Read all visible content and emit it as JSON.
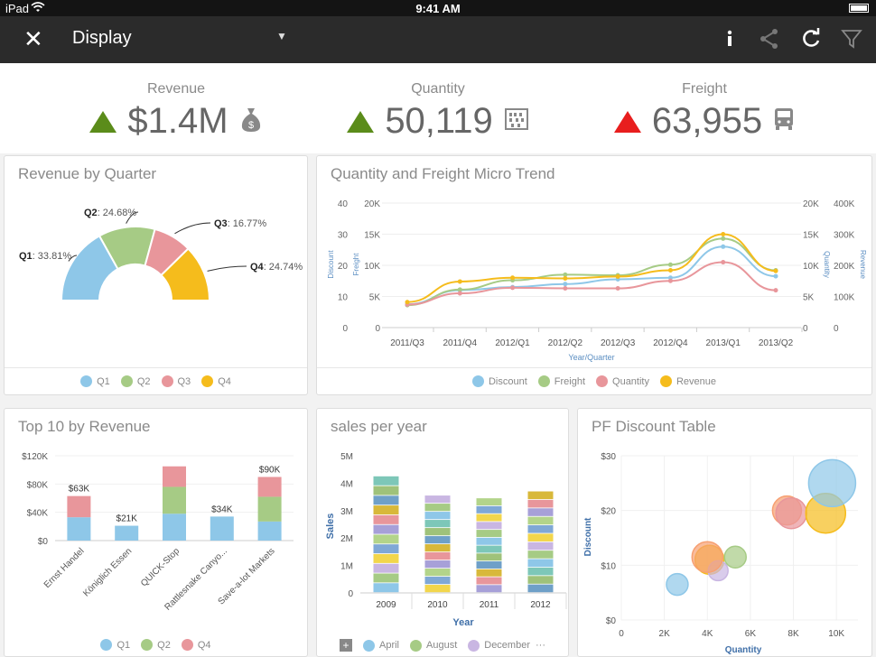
{
  "status_bar": {
    "carrier": "iPad",
    "time": "9:41 AM"
  },
  "toolbar": {
    "title": "Display",
    "close_glyph": "✕",
    "dropdown_glyph": "▼",
    "icons": [
      "info-icon",
      "share-icon",
      "refresh-icon",
      "filter-icon"
    ]
  },
  "kpis": [
    {
      "label": "Revenue",
      "value": "$1.4M",
      "trend": "up",
      "color": "#5b8c1a",
      "icon": "money-bag-icon"
    },
    {
      "label": "Quantity",
      "value": "50,119",
      "trend": "up",
      "color": "#5b8c1a",
      "icon": "abacus-icon"
    },
    {
      "label": "Freight",
      "value": "63,955",
      "trend": "down",
      "color": "#e81e1e",
      "icon": "truck-icon"
    }
  ],
  "colors": {
    "blue": "#8ec7e8",
    "green": "#a6cb85",
    "pink": "#e8969b",
    "gold": "#f5bc1c"
  },
  "panels": {
    "revenue_by_quarter": {
      "title": "Revenue by Quarter",
      "legend": [
        "Q1",
        "Q2",
        "Q3",
        "Q4"
      ]
    },
    "micro_trend": {
      "title": "Quantity and Freight Micro Trend",
      "legend": [
        "Discount",
        "Freight",
        "Quantity",
        "Revenue"
      ]
    },
    "top10": {
      "title": "Top 10 by Revenue",
      "legend": [
        "Q1",
        "Q2",
        "Q4"
      ]
    },
    "sales_per_year": {
      "title": "sales per year",
      "legend": [
        "April",
        "August",
        "December"
      ],
      "legend_add": "+",
      "legend_more": "···"
    },
    "pf_discount": {
      "title": "PF Discount Table"
    }
  },
  "chart_data": [
    {
      "type": "pie",
      "variant": "half-donut",
      "title": "Revenue by Quarter",
      "categories": [
        "Q1",
        "Q2",
        "Q3",
        "Q4"
      ],
      "values": [
        33.81,
        24.68,
        16.77,
        24.74
      ],
      "labels": [
        "Q1: 33.81%",
        "Q2: 24.68%",
        "Q3: 16.77%",
        "Q4: 24.74%"
      ],
      "legend_placement": "bottom"
    },
    {
      "type": "line",
      "title": "Quantity and Freight Micro Trend",
      "x": [
        "2011/Q3",
        "2011/Q4",
        "2012/Q1",
        "2012/Q2",
        "2012/Q3",
        "2012/Q4",
        "2013/Q1",
        "2013/Q2"
      ],
      "xlabel": "Year/Quarter",
      "axes": {
        "discount": {
          "label": "Discount",
          "ticks": [
            "0",
            "10",
            "20",
            "30",
            "40"
          ],
          "range": [
            0,
            40
          ]
        },
        "freight": {
          "label": "Freight",
          "ticks": [
            "0",
            "5K",
            "10K",
            "15K",
            "20K"
          ],
          "range": [
            0,
            20000
          ]
        },
        "quantity": {
          "label": "Quantity",
          "ticks": [
            "0",
            "5K",
            "10K",
            "15K",
            "20K"
          ],
          "range": [
            0,
            20000
          ]
        },
        "revenue": {
          "label": "Revenue",
          "ticks": [
            "0",
            "100K",
            "200K",
            "300K",
            "400K"
          ],
          "range": [
            0,
            400000
          ]
        }
      },
      "series": [
        {
          "name": "Discount",
          "axis": "discount",
          "color": "#8ec7e8",
          "values": [
            7.5,
            12,
            13,
            14,
            15.5,
            16,
            26,
            16.5
          ]
        },
        {
          "name": "Freight",
          "axis": "freight",
          "color": "#a6cb85",
          "values": [
            3600,
            6100,
            7600,
            8500,
            8400,
            10100,
            14300,
            9200
          ]
        },
        {
          "name": "Quantity",
          "axis": "quantity",
          "color": "#e8969b",
          "values": [
            3700,
            5500,
            6400,
            6300,
            6300,
            7500,
            10500,
            6000
          ]
        },
        {
          "name": "Revenue",
          "axis": "revenue",
          "color": "#f5bc1c",
          "values": [
            82000,
            148000,
            160000,
            158000,
            164000,
            184000,
            300000,
            182000
          ]
        }
      ],
      "legend_placement": "bottom"
    },
    {
      "type": "bar",
      "variant": "stacked",
      "title": "Top 10 by Revenue",
      "categories": [
        "Ernst Handel",
        "Königlich Essen",
        "QUICK-Stop",
        "Rattlesnake Canyo...",
        "Save-a-lot Markets"
      ],
      "series": [
        {
          "name": "Q1",
          "color": "#8ec7e8",
          "values": [
            33000,
            21000,
            38000,
            34000,
            27000
          ]
        },
        {
          "name": "Q2",
          "color": "#a6cb85",
          "values": [
            0,
            0,
            38000,
            0,
            35000
          ]
        },
        {
          "name": "Q4",
          "color": "#e8969b",
          "values": [
            30000,
            0,
            29000,
            0,
            28000
          ]
        }
      ],
      "data_labels": [
        "$63K",
        "$21K",
        "",
        "$34K",
        "$90K"
      ],
      "yticks": [
        "$0",
        "$40K",
        "$80K",
        "$120K"
      ],
      "ylim": [
        0,
        120000
      ],
      "legend_placement": "bottom"
    },
    {
      "type": "bar",
      "variant": "stacked",
      "title": "sales per year",
      "categories": [
        "2009",
        "2010",
        "2011",
        "2012"
      ],
      "totals": [
        4250000,
        3550000,
        3450000,
        3700000
      ],
      "xlabel": "Year",
      "ylabel": "Sales",
      "yticks": [
        "0",
        "1M",
        "2M",
        "3M",
        "4M",
        "5M"
      ],
      "ylim": [
        0,
        5000000
      ],
      "legend": [
        "April",
        "August",
        "December"
      ],
      "legend_placement": "bottom"
    },
    {
      "type": "scatter",
      "variant": "bubble",
      "title": "PF Discount Table",
      "xlabel": "Quantity",
      "ylabel": "Discount",
      "xticks": [
        "0",
        "2K",
        "4K",
        "6K",
        "8K",
        "10K"
      ],
      "yticks": [
        "$0",
        "$10",
        "$20",
        "$30"
      ],
      "xlim": [
        0,
        11000
      ],
      "ylim": [
        0,
        30
      ],
      "points": [
        {
          "x": 2600,
          "y": 6.5,
          "size": 12,
          "color": "#8ec7e8"
        },
        {
          "x": 4100,
          "y": 11,
          "size": 16,
          "color": "#f5bc1c"
        },
        {
          "x": 4500,
          "y": 9,
          "size": 11,
          "color": "#c9b6e2"
        },
        {
          "x": 4000,
          "y": 11.5,
          "size": 17,
          "color": "#f7a072"
        },
        {
          "x": 5300,
          "y": 11.5,
          "size": 12,
          "color": "#a6cb85"
        },
        {
          "x": 7700,
          "y": 20,
          "size": 16,
          "color": "#f7a072"
        },
        {
          "x": 7900,
          "y": 19.5,
          "size": 17,
          "color": "#e8969b"
        },
        {
          "x": 9500,
          "y": 19.5,
          "size": 22,
          "color": "#f5bc1c"
        },
        {
          "x": 9800,
          "y": 25,
          "size": 26,
          "color": "#8ec7e8"
        }
      ]
    }
  ]
}
